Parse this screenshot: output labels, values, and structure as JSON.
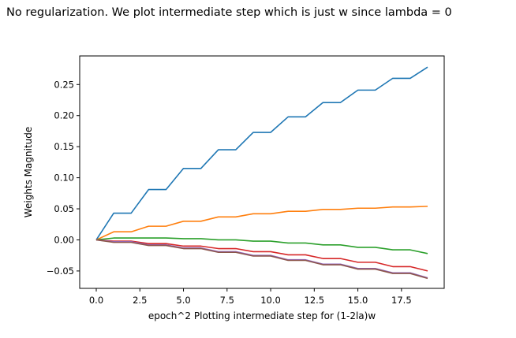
{
  "header": {
    "text": "No regularization. We plot intermediate step which is just w since lambda = 0"
  },
  "chart_data": {
    "type": "line",
    "title": "",
    "xlabel": "epoch^2 Plotting intermediate step for (1-2la)w",
    "ylabel": "Weights Magnitude",
    "xlim": [
      -0.95,
      19.95
    ],
    "ylim": [
      -0.078,
      0.296
    ],
    "x_ticks": [
      0.0,
      2.5,
      5.0,
      7.5,
      10.0,
      12.5,
      15.0,
      17.5
    ],
    "x_tick_labels": [
      "0.0",
      "2.5",
      "5.0",
      "7.5",
      "10.0",
      "12.5",
      "15.0",
      "17.5"
    ],
    "y_ticks": [
      -0.05,
      0.0,
      0.05,
      0.1,
      0.15,
      0.2,
      0.25
    ],
    "y_tick_labels": [
      "−0.05",
      "0.00",
      "0.05",
      "0.10",
      "0.15",
      "0.20",
      "0.25"
    ],
    "grid": false,
    "legend": "none",
    "x": [
      0,
      1,
      2,
      3,
      4,
      5,
      6,
      7,
      8,
      9,
      10,
      11,
      12,
      13,
      14,
      15,
      16,
      17,
      18,
      19
    ],
    "series": [
      {
        "color": "#1f77b4",
        "values": [
          0.0,
          0.043,
          0.043,
          0.081,
          0.081,
          0.115,
          0.115,
          0.145,
          0.145,
          0.173,
          0.173,
          0.198,
          0.198,
          0.221,
          0.221,
          0.241,
          0.241,
          0.26,
          0.26,
          0.278
        ]
      },
      {
        "color": "#ff7f0e",
        "values": [
          0.0,
          0.013,
          0.013,
          0.022,
          0.022,
          0.03,
          0.03,
          0.037,
          0.037,
          0.042,
          0.042,
          0.046,
          0.046,
          0.049,
          0.049,
          0.051,
          0.051,
          0.053,
          0.053,
          0.054
        ]
      },
      {
        "color": "#2ca02c",
        "values": [
          0.0,
          0.003,
          0.003,
          0.003,
          0.003,
          0.002,
          0.002,
          0.0,
          0.0,
          -0.002,
          -0.002,
          -0.005,
          -0.005,
          -0.008,
          -0.008,
          -0.012,
          -0.012,
          -0.016,
          -0.016,
          -0.022
        ]
      },
      {
        "color": "#d62728",
        "values": [
          0.0,
          -0.002,
          -0.002,
          -0.006,
          -0.006,
          -0.01,
          -0.01,
          -0.014,
          -0.014,
          -0.019,
          -0.019,
          -0.024,
          -0.024,
          -0.03,
          -0.03,
          -0.036,
          -0.036,
          -0.043,
          -0.043,
          -0.05
        ]
      },
      {
        "color": "#9467bd",
        "values": [
          0.0,
          -0.003,
          -0.003,
          -0.008,
          -0.008,
          -0.013,
          -0.013,
          -0.019,
          -0.019,
          -0.025,
          -0.025,
          -0.032,
          -0.032,
          -0.039,
          -0.039,
          -0.046,
          -0.046,
          -0.053,
          -0.053,
          -0.061
        ]
      },
      {
        "color": "#8c564b",
        "values": [
          0.0,
          -0.004,
          -0.004,
          -0.009,
          -0.009,
          -0.014,
          -0.014,
          -0.02,
          -0.02,
          -0.026,
          -0.026,
          -0.033,
          -0.033,
          -0.04,
          -0.04,
          -0.047,
          -0.047,
          -0.054,
          -0.054,
          -0.062
        ]
      }
    ]
  }
}
